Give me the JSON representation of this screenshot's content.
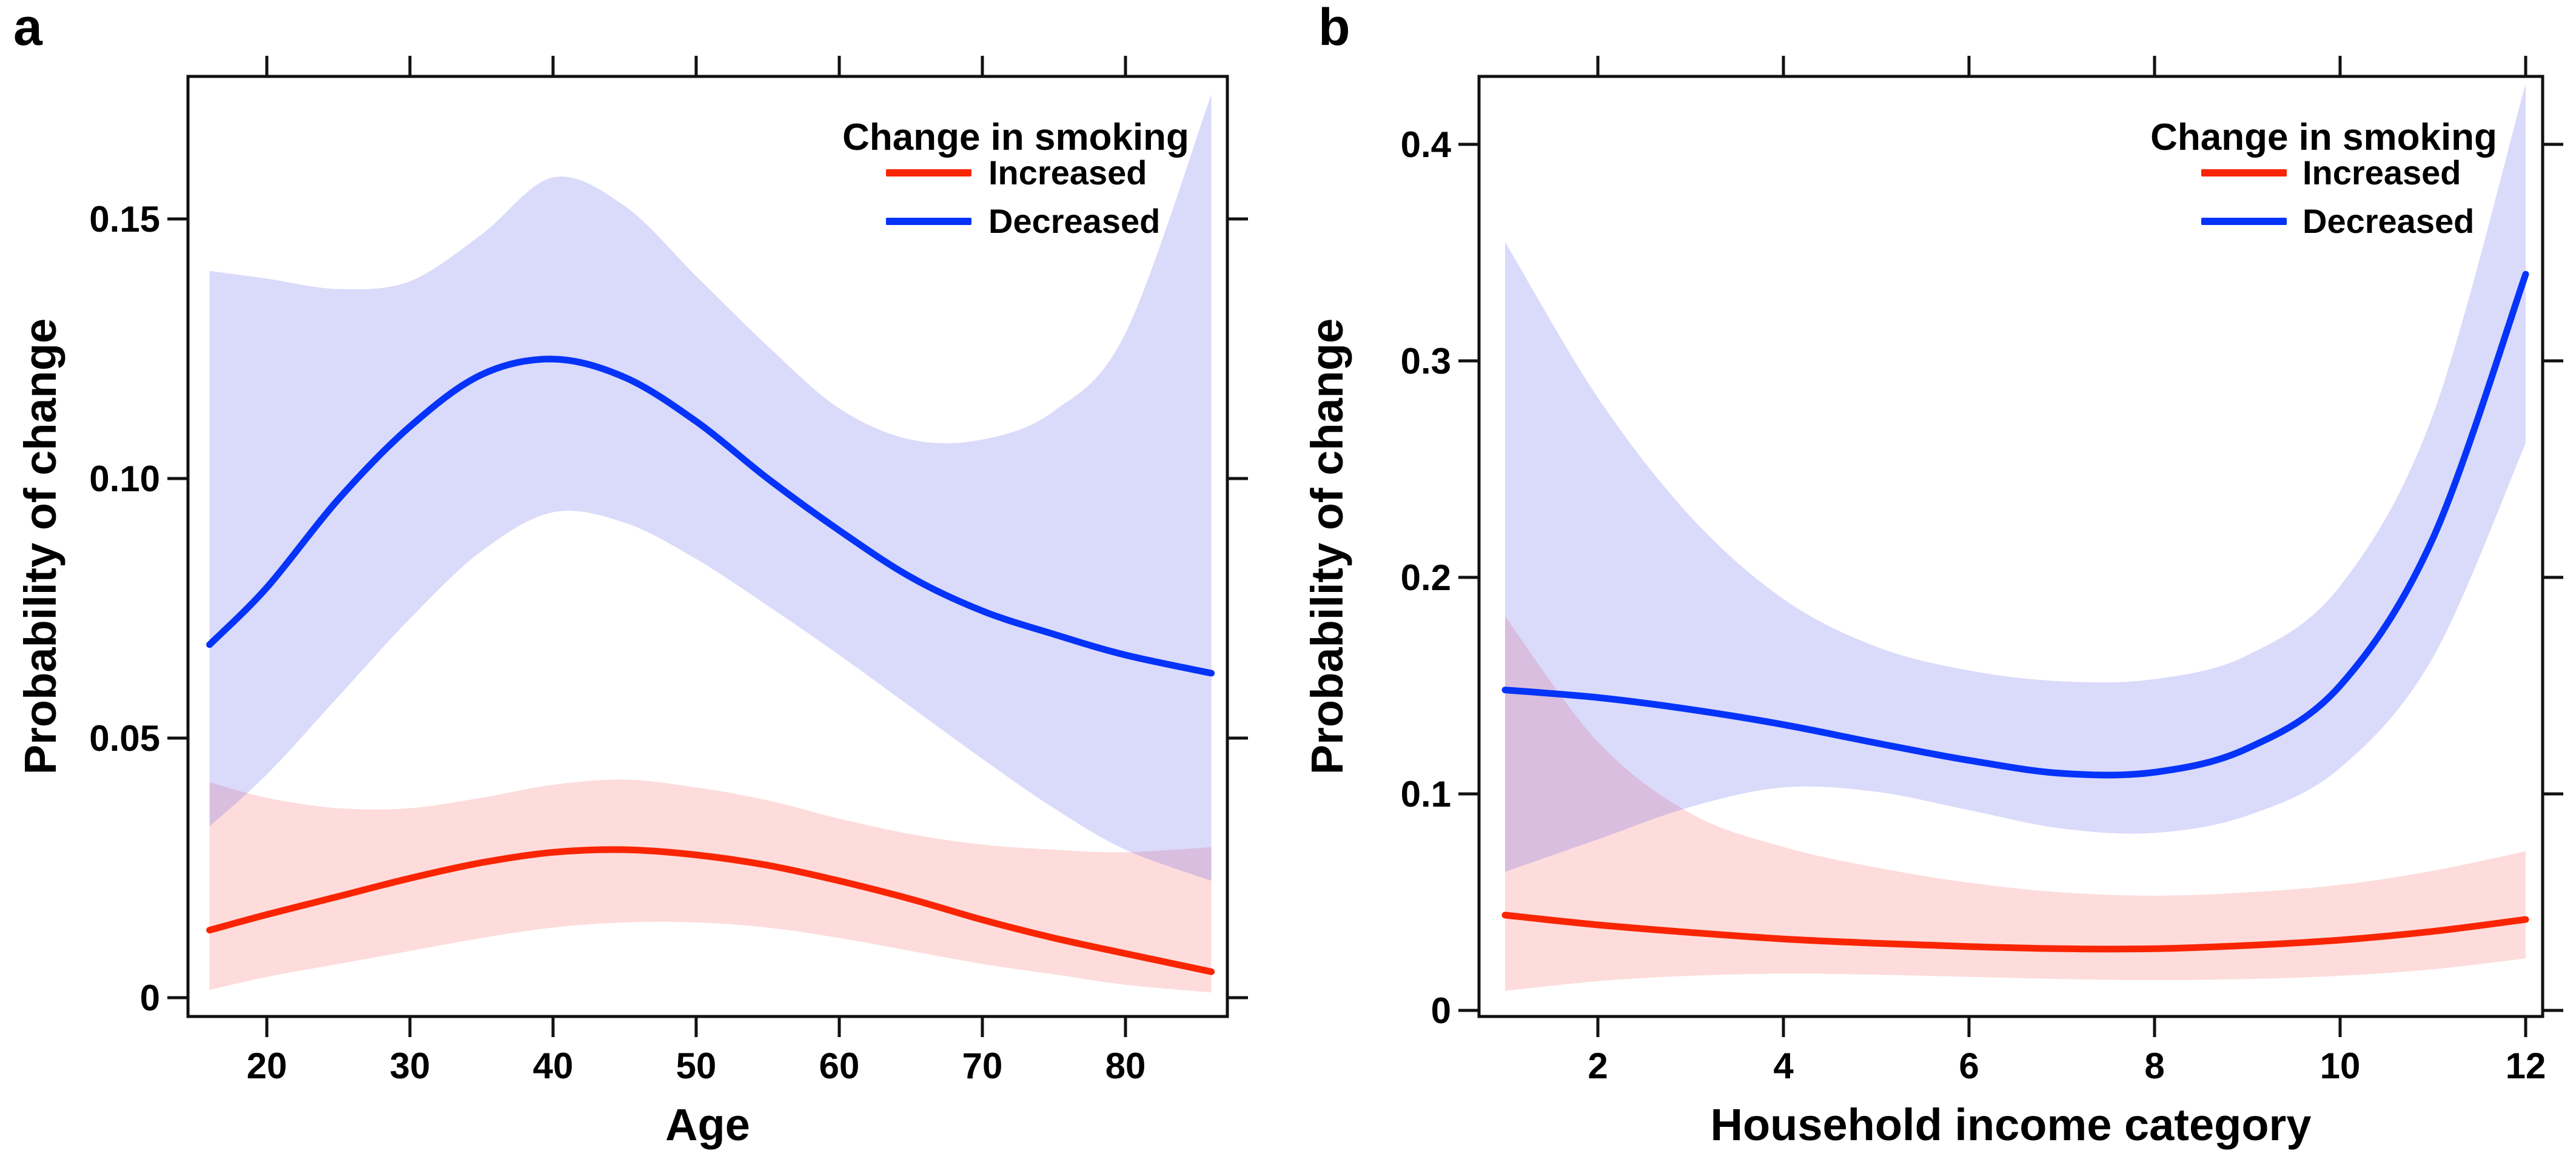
{
  "figure": {
    "background": "#ffffff",
    "panels": [
      {
        "letter": "a"
      },
      {
        "letter": "b"
      }
    ]
  },
  "chart_data": [
    {
      "panel": "a",
      "type": "line",
      "title": "",
      "xlabel": "Age",
      "ylabel": "Probability of change",
      "xlim": [
        14.5,
        87.1
      ],
      "ylim": [
        -0.004,
        0.1775
      ],
      "xticks": [
        20,
        30,
        40,
        50,
        60,
        70,
        80
      ],
      "xtick_labels": [
        "20",
        "30",
        "40",
        "50",
        "60",
        "70",
        "80"
      ],
      "yticks": [
        0,
        0.05,
        0.1,
        0.15
      ],
      "ytick_labels": [
        "0",
        "0.05",
        "0.10",
        "0.15"
      ],
      "grid": false,
      "legend": {
        "title": "Change in smoking",
        "position": "top-right-inside",
        "entries": [
          {
            "label": "Increased",
            "color": "#f92502"
          },
          {
            "label": "Decreased",
            "color": "#0533f9"
          }
        ]
      },
      "series": [
        {
          "name": "Increased",
          "color": "#f92502",
          "band_fill": "rgba(250,80,80,0.20)",
          "x": [
            16,
            20,
            25,
            30,
            35,
            40,
            45,
            50,
            55,
            60,
            65,
            70,
            75,
            80,
            86
          ],
          "y": [
            0.013,
            0.016,
            0.0195,
            0.023,
            0.026,
            0.028,
            0.0285,
            0.0275,
            0.0255,
            0.0225,
            0.019,
            0.015,
            0.0115,
            0.0085,
            0.005
          ],
          "ci_upper": [
            0.0415,
            0.0385,
            0.0365,
            0.0365,
            0.0385,
            0.041,
            0.042,
            0.0405,
            0.038,
            0.0345,
            0.0315,
            0.0295,
            0.0285,
            0.028,
            0.029
          ],
          "ci_lower": [
            0.0015,
            0.004,
            0.0065,
            0.009,
            0.0115,
            0.0135,
            0.0145,
            0.0145,
            0.0135,
            0.0115,
            0.009,
            0.0065,
            0.0045,
            0.0025,
            0.001
          ]
        },
        {
          "name": "Decreased",
          "color": "#0533f9",
          "band_fill": "rgba(85,85,235,0.22)",
          "x": [
            16,
            20,
            25,
            30,
            35,
            40,
            45,
            50,
            55,
            60,
            65,
            70,
            75,
            80,
            86
          ],
          "y": [
            0.068,
            0.079,
            0.096,
            0.11,
            0.12,
            0.123,
            0.1195,
            0.111,
            0.1,
            0.09,
            0.081,
            0.0745,
            0.07,
            0.066,
            0.0625
          ],
          "ci_upper": [
            0.14,
            0.1385,
            0.1365,
            0.138,
            0.147,
            0.158,
            0.1525,
            0.139,
            0.1255,
            0.1135,
            0.1075,
            0.1075,
            0.113,
            0.128,
            0.174
          ],
          "ci_lower": [
            0.033,
            0.043,
            0.058,
            0.073,
            0.086,
            0.0935,
            0.0915,
            0.0845,
            0.0755,
            0.066,
            0.056,
            0.046,
            0.0365,
            0.0285,
            0.0225
          ]
        }
      ]
    },
    {
      "panel": "b",
      "type": "line",
      "title": "",
      "xlabel": "Household income category",
      "ylabel": "Probability of change",
      "xlim": [
        0.7,
        12.3
      ],
      "ylim": [
        -0.003,
        0.431
      ],
      "xticks": [
        2,
        4,
        6,
        8,
        10,
        12
      ],
      "xtick_labels": [
        "2",
        "4",
        "6",
        "8",
        "10",
        "12"
      ],
      "yticks": [
        0,
        0.1,
        0.2,
        0.3,
        0.4
      ],
      "ytick_labels": [
        "0",
        "0.1",
        "0.2",
        "0.3",
        "0.4"
      ],
      "grid": false,
      "legend": {
        "title": "Change in smoking",
        "position": "top-right-inside",
        "entries": [
          {
            "label": "Increased",
            "color": "#f92502"
          },
          {
            "label": "Decreased",
            "color": "#0533f9"
          }
        ]
      },
      "series": [
        {
          "name": "Increased",
          "color": "#f92502",
          "band_fill": "rgba(250,80,80,0.20)",
          "x": [
            1,
            2,
            3,
            4,
            5,
            6,
            7,
            8,
            9,
            10,
            11,
            12
          ],
          "y": [
            0.044,
            0.0395,
            0.036,
            0.033,
            0.031,
            0.0295,
            0.0285,
            0.0285,
            0.03,
            0.0325,
            0.0365,
            0.042
          ],
          "ci_upper": [
            0.182,
            0.124,
            0.091,
            0.0755,
            0.066,
            0.059,
            0.0545,
            0.053,
            0.0545,
            0.058,
            0.0645,
            0.0735
          ],
          "ci_lower": [
            0.009,
            0.0135,
            0.016,
            0.017,
            0.0165,
            0.0155,
            0.0145,
            0.014,
            0.0145,
            0.016,
            0.019,
            0.024
          ]
        },
        {
          "name": "Decreased",
          "color": "#0533f9",
          "band_fill": "rgba(85,85,235,0.22)",
          "x": [
            1,
            2,
            3,
            4,
            5,
            6,
            7,
            8,
            9,
            10,
            11,
            12
          ],
          "y": [
            0.148,
            0.1445,
            0.139,
            0.132,
            0.1235,
            0.1155,
            0.1095,
            0.11,
            0.121,
            0.15,
            0.218,
            0.34
          ],
          "ci_upper": [
            0.355,
            0.283,
            0.228,
            0.19,
            0.168,
            0.157,
            0.152,
            0.153,
            0.164,
            0.196,
            0.275,
            0.428
          ],
          "ci_lower": [
            0.064,
            0.079,
            0.094,
            0.103,
            0.101,
            0.0925,
            0.084,
            0.082,
            0.09,
            0.112,
            0.163,
            0.262
          ]
        }
      ]
    }
  ]
}
